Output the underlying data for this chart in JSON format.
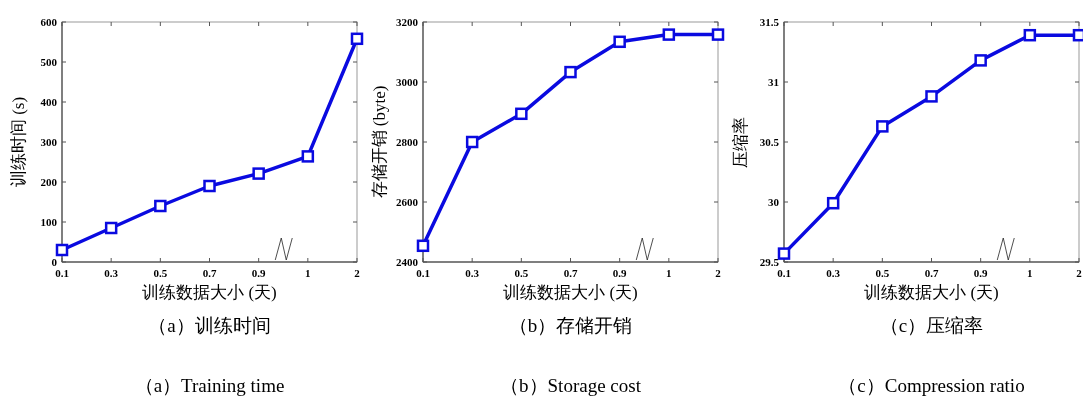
{
  "chart_data": [
    {
      "type": "line",
      "title": "（a）训练时间",
      "subtitle": "（a）Training time",
      "xlabel": "训练数据大小 (天)",
      "ylabel": "训练时间 (s)",
      "categories": [
        "0.1",
        "0.3",
        "0.5",
        "0.7",
        "0.9",
        "1",
        "2"
      ],
      "series": [
        {
          "color": "#0a0ae0",
          "values": [
            30,
            85,
            140,
            190,
            221,
            264,
            558
          ]
        }
      ],
      "ylim": [
        0,
        600
      ],
      "yticks": [
        0,
        100,
        200,
        300,
        400,
        500,
        600
      ],
      "grid": false,
      "marker": "square",
      "line_style": "solid"
    },
    {
      "type": "line",
      "title": "（b）存储开销",
      "subtitle": "（b）Storage cost",
      "xlabel": "训练数据大小 (天)",
      "ylabel": "存储开销 (byte)",
      "categories": [
        "0.1",
        "0.3",
        "0.5",
        "0.7",
        "0.9",
        "1",
        "2"
      ],
      "series": [
        {
          "color": "#0a0ae0",
          "values": [
            2454,
            2800,
            2894,
            3033,
            3134,
            3158,
            3158
          ]
        }
      ],
      "ylim": [
        2400,
        3200
      ],
      "yticks": [
        2400,
        2600,
        2800,
        3000,
        3200
      ],
      "grid": false,
      "marker": "square",
      "line_style": "solid"
    },
    {
      "type": "line",
      "title": "（c）压缩率",
      "subtitle": "（c）Compression ratio",
      "xlabel": "训练数据大小 (天)",
      "ylabel": "压缩率",
      "categories": [
        "0.1",
        "0.3",
        "0.5",
        "0.7",
        "0.9",
        "1",
        "2"
      ],
      "series": [
        {
          "color": "#0a0ae0",
          "values": [
            29.57,
            29.99,
            30.63,
            30.88,
            31.18,
            31.39,
            31.39
          ]
        }
      ],
      "ylim": [
        29.5,
        31.5
      ],
      "yticks": [
        29.5,
        30,
        30.5,
        31,
        31.5
      ],
      "grid": false,
      "marker": "square",
      "line_style": "solid"
    }
  ]
}
